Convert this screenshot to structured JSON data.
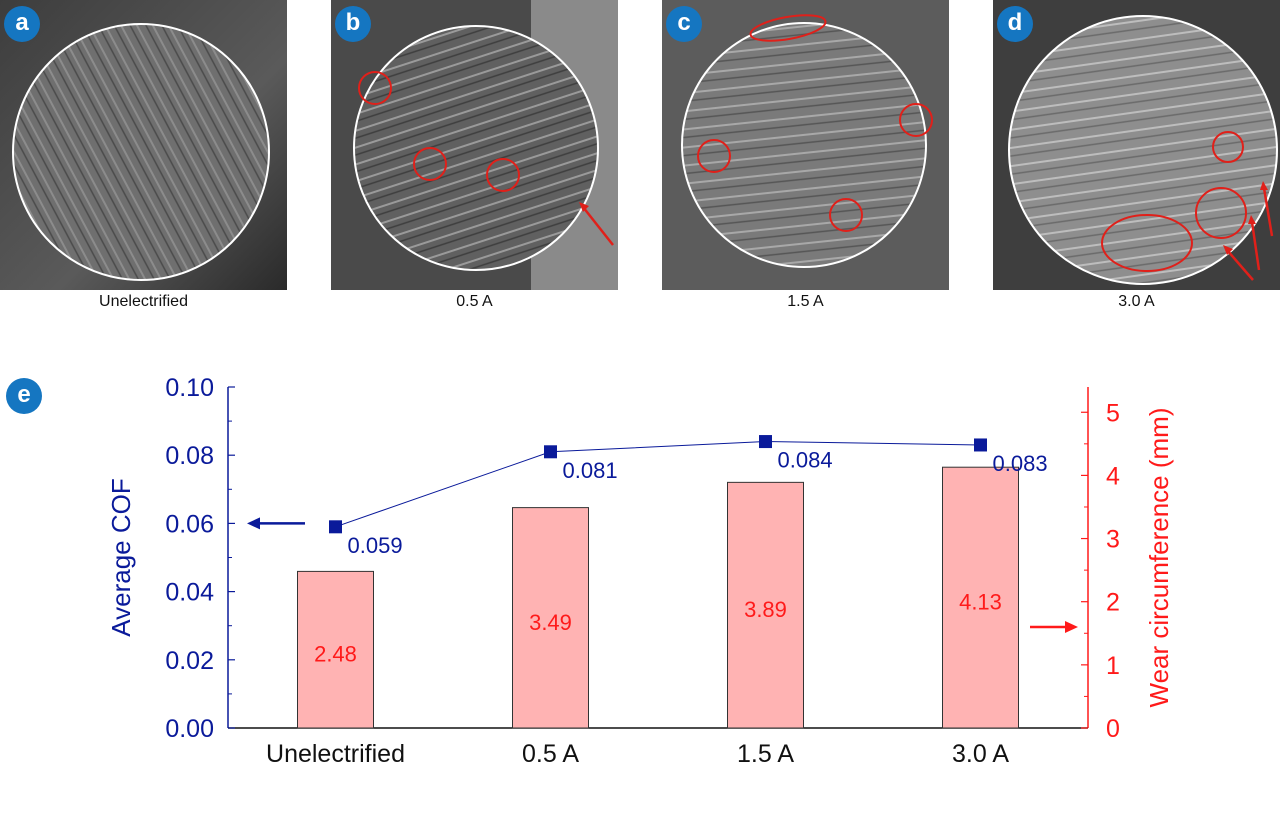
{
  "panels": [
    {
      "label": "a",
      "caption": "Unelectrified"
    },
    {
      "label": "b",
      "caption": "0.5 A"
    },
    {
      "label": "c",
      "caption": "1.5 A"
    },
    {
      "label": "d",
      "caption": "3.0 A"
    }
  ],
  "chart_label": "e",
  "chart_data": {
    "type": "bar+line",
    "categories": [
      "Unelectrified",
      "0.5 A",
      "1.5 A",
      "3.0 A"
    ],
    "series": [
      {
        "name": "Average COF",
        "type": "line",
        "axis": "left",
        "color": "#0a1a9a",
        "values": [
          0.059,
          0.081,
          0.084,
          0.083
        ],
        "labels": [
          "0.059",
          "0.081",
          "0.084",
          "0.083"
        ]
      },
      {
        "name": "Wear circumference",
        "type": "bar",
        "axis": "right",
        "color": "#ffb3b3",
        "values": [
          2.48,
          3.49,
          3.89,
          4.13
        ],
        "labels": [
          "2.48",
          "3.49",
          "3.89",
          "4.13"
        ]
      }
    ],
    "ylabel_left": "Average COF",
    "ylabel_right": "Wear circumference (mm)",
    "ylim_left": [
      0,
      0.1
    ],
    "ylim_right": [
      0,
      5.4
    ],
    "left_ticks": [
      "0.00",
      "0.02",
      "0.04",
      "0.06",
      "0.08",
      "0.10"
    ],
    "right_ticks": [
      "0",
      "1",
      "2",
      "3",
      "4",
      "5"
    ],
    "grid": false,
    "left_color": "#0a1a9a",
    "right_color": "#ff1a1a"
  }
}
